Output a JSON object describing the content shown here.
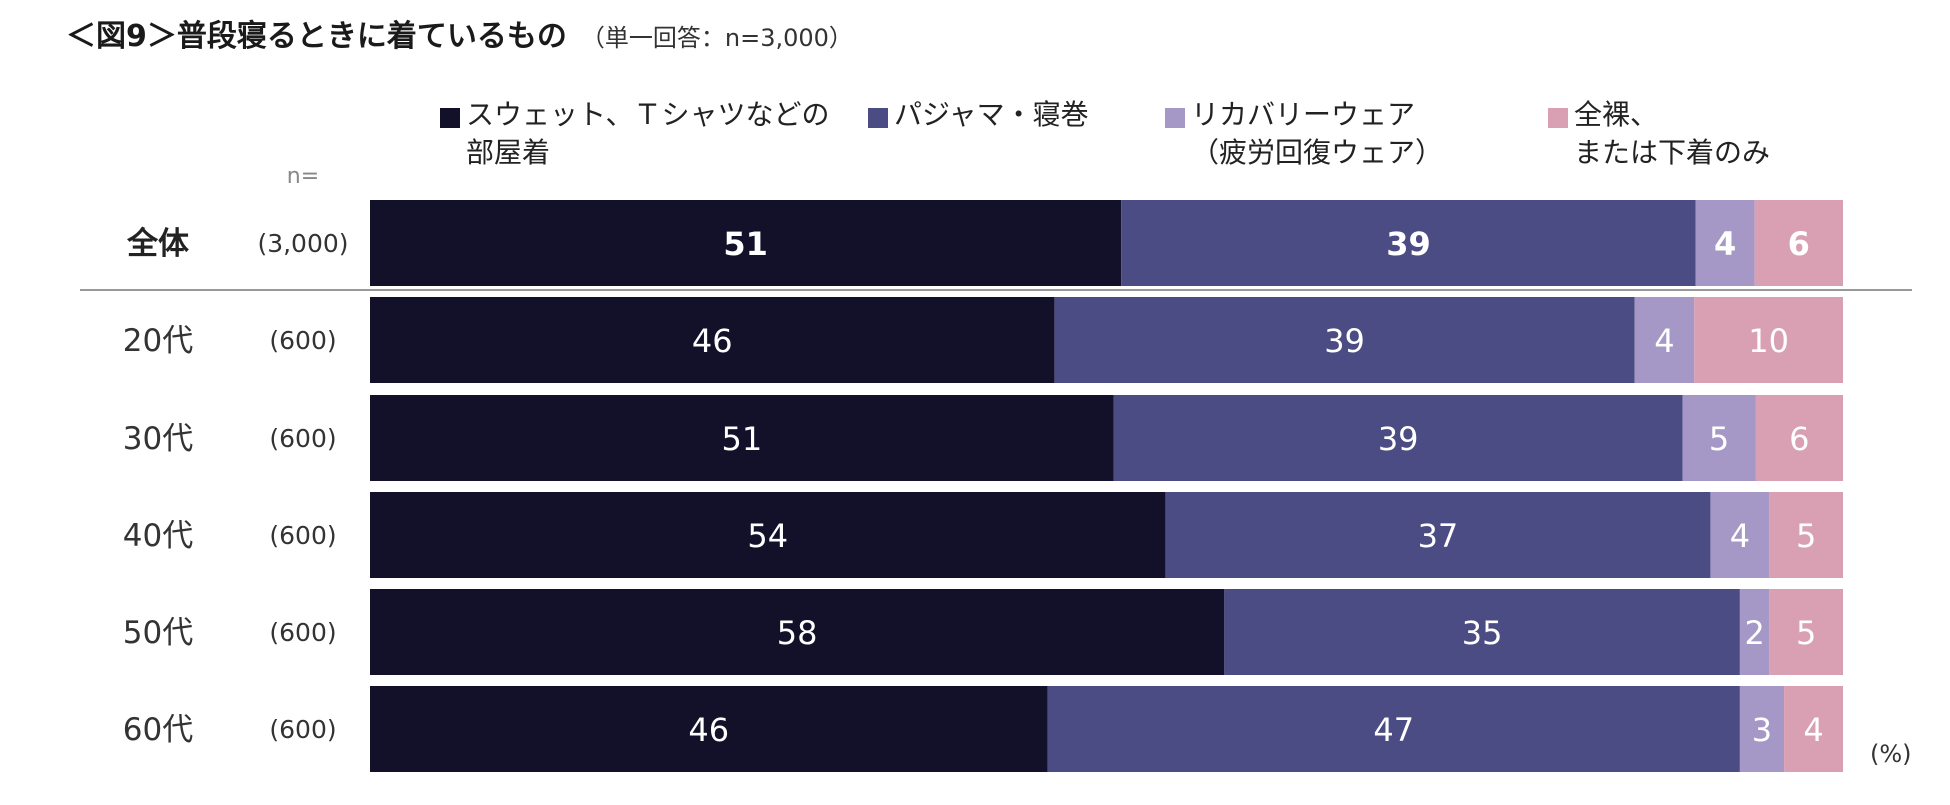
{
  "chart_data": {
    "type": "bar",
    "orientation": "horizontal-stacked-100",
    "title": "＜図9＞普段寝るときに着ているもの",
    "subtitle": "（単一回答：n=3,000）",
    "n_header": "n=",
    "unit": "(%)",
    "series": [
      {
        "name": "スウェット、Ｔシャツなどの部屋着",
        "legend_lines": [
          "スウェット、Ｔシャツなどの",
          "部屋着"
        ],
        "color": "#13112a",
        "values": [
          51,
          46,
          51,
          54,
          58,
          46
        ]
      },
      {
        "name": "パジャマ・寝巻",
        "legend_lines": [
          "パジャマ・寝巻"
        ],
        "color": "#4c4c84",
        "values": [
          39,
          39,
          39,
          37,
          35,
          47
        ]
      },
      {
        "name": "リカバリーウェア（疲労回復ウェア）",
        "legend_lines": [
          "リカバリーウェア",
          "（疲労回復ウェア）"
        ],
        "color": "#a598c6",
        "values": [
          4,
          4,
          5,
          4,
          2,
          3
        ]
      },
      {
        "name": "全裸、または下着のみ",
        "legend_lines": [
          "全裸、",
          "または下着のみ"
        ],
        "color": "#d9a0b4",
        "values": [
          6,
          10,
          6,
          5,
          5,
          4
        ]
      }
    ],
    "categories": [
      "全体",
      "20代",
      "30代",
      "40代",
      "50代",
      "60代"
    ],
    "n_values": [
      "(3,000)",
      "(600)",
      "(600)",
      "(600)",
      "(600)",
      "(600)"
    ],
    "emphasized_category": "全体",
    "legend_marker": "■",
    "xlim": [
      0,
      100
    ]
  }
}
